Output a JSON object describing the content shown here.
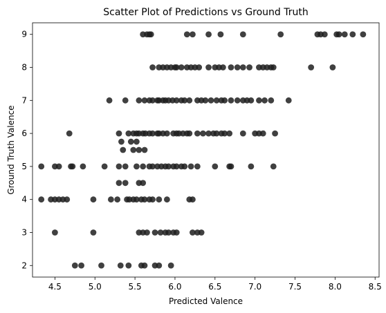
{
  "chart_data": {
    "type": "scatter",
    "title": "Scatter Plot of Predictions vs Ground Truth",
    "xlabel": "Predicted Valence",
    "ylabel": "Ground Truth Valence",
    "xlim": [
      4.22,
      8.55
    ],
    "ylim": [
      1.65,
      9.35
    ],
    "xticks": [
      4.5,
      5.0,
      5.5,
      6.0,
      6.5,
      7.0,
      7.5,
      8.0,
      8.5
    ],
    "xtick_labels": [
      "4.5",
      "5.0",
      "5.5",
      "6.0",
      "6.5",
      "7.0",
      "7.5",
      "8.0",
      "8.5"
    ],
    "yticks": [
      2,
      3,
      4,
      5,
      6,
      7,
      8,
      9
    ],
    "ytick_labels": [
      "2",
      "3",
      "4",
      "5",
      "6",
      "7",
      "8",
      "9"
    ],
    "grid": false,
    "marker_color": "#1f1f1f",
    "marker_alpha": 0.85,
    "series": [
      {
        "points": [
          [
            5.6,
            9
          ],
          [
            5.65,
            9
          ],
          [
            5.68,
            9
          ],
          [
            5.7,
            9
          ],
          [
            6.15,
            9
          ],
          [
            6.22,
            9
          ],
          [
            6.42,
            9
          ],
          [
            6.57,
            9
          ],
          [
            6.85,
            9
          ],
          [
            7.32,
            9
          ],
          [
            7.78,
            9
          ],
          [
            7.82,
            9
          ],
          [
            7.87,
            9
          ],
          [
            8.02,
            9
          ],
          [
            8.05,
            9
          ],
          [
            8.12,
            9
          ],
          [
            8.22,
            9
          ],
          [
            8.35,
            9
          ],
          [
            5.72,
            8
          ],
          [
            5.8,
            8
          ],
          [
            5.85,
            8
          ],
          [
            5.9,
            8
          ],
          [
            5.95,
            8
          ],
          [
            6.0,
            8
          ],
          [
            6.02,
            8
          ],
          [
            6.08,
            8
          ],
          [
            6.15,
            8
          ],
          [
            6.2,
            8
          ],
          [
            6.25,
            8
          ],
          [
            6.3,
            8
          ],
          [
            6.42,
            8
          ],
          [
            6.5,
            8
          ],
          [
            6.55,
            8
          ],
          [
            6.6,
            8
          ],
          [
            6.7,
            8
          ],
          [
            6.78,
            8
          ],
          [
            6.85,
            8
          ],
          [
            6.93,
            8
          ],
          [
            7.05,
            8
          ],
          [
            7.1,
            8
          ],
          [
            7.15,
            8
          ],
          [
            7.2,
            8
          ],
          [
            7.23,
            8
          ],
          [
            7.7,
            8
          ],
          [
            7.97,
            8
          ],
          [
            5.18,
            7
          ],
          [
            5.38,
            7
          ],
          [
            5.55,
            7
          ],
          [
            5.62,
            7
          ],
          [
            5.68,
            7
          ],
          [
            5.72,
            7
          ],
          [
            5.78,
            7
          ],
          [
            5.8,
            7
          ],
          [
            5.85,
            7
          ],
          [
            5.88,
            7
          ],
          [
            5.92,
            7
          ],
          [
            5.97,
            7
          ],
          [
            6.02,
            7
          ],
          [
            6.08,
            7
          ],
          [
            6.12,
            7
          ],
          [
            6.18,
            7
          ],
          [
            6.28,
            7
          ],
          [
            6.33,
            7
          ],
          [
            6.38,
            7
          ],
          [
            6.45,
            7
          ],
          [
            6.52,
            7
          ],
          [
            6.58,
            7
          ],
          [
            6.62,
            7
          ],
          [
            6.7,
            7
          ],
          [
            6.78,
            7
          ],
          [
            6.85,
            7
          ],
          [
            6.9,
            7
          ],
          [
            6.95,
            7
          ],
          [
            7.05,
            7
          ],
          [
            7.12,
            7
          ],
          [
            7.2,
            7
          ],
          [
            7.42,
            7
          ],
          [
            4.68,
            6
          ],
          [
            5.3,
            6
          ],
          [
            5.42,
            6
          ],
          [
            5.48,
            6
          ],
          [
            5.52,
            6
          ],
          [
            5.55,
            6
          ],
          [
            5.6,
            6
          ],
          [
            5.63,
            6
          ],
          [
            5.68,
            6
          ],
          [
            5.72,
            6
          ],
          [
            5.78,
            6
          ],
          [
            5.8,
            6
          ],
          [
            5.85,
            6
          ],
          [
            5.9,
            6
          ],
          [
            5.98,
            6
          ],
          [
            6.02,
            6
          ],
          [
            6.05,
            6
          ],
          [
            6.1,
            6
          ],
          [
            6.15,
            6
          ],
          [
            6.18,
            6
          ],
          [
            6.28,
            6
          ],
          [
            6.35,
            6
          ],
          [
            6.42,
            6
          ],
          [
            6.48,
            6
          ],
          [
            6.52,
            6
          ],
          [
            6.58,
            6
          ],
          [
            6.62,
            6
          ],
          [
            6.68,
            6
          ],
          [
            6.85,
            6
          ],
          [
            7.0,
            6
          ],
          [
            7.05,
            6
          ],
          [
            7.1,
            6
          ],
          [
            7.25,
            6
          ],
          [
            5.45,
            5.75
          ],
          [
            5.52,
            5.75
          ],
          [
            5.33,
            5.75
          ],
          [
            5.35,
            5.5
          ],
          [
            5.48,
            5.5
          ],
          [
            5.55,
            5.5
          ],
          [
            5.62,
            5.5
          ],
          [
            4.33,
            5
          ],
          [
            4.5,
            5
          ],
          [
            4.55,
            5
          ],
          [
            4.7,
            5
          ],
          [
            4.72,
            5
          ],
          [
            4.85,
            5
          ],
          [
            5.12,
            5
          ],
          [
            5.3,
            5
          ],
          [
            5.38,
            5
          ],
          [
            5.52,
            5
          ],
          [
            5.6,
            5
          ],
          [
            5.68,
            5
          ],
          [
            5.72,
            5
          ],
          [
            5.78,
            5
          ],
          [
            5.83,
            5
          ],
          [
            5.88,
            5
          ],
          [
            5.92,
            5
          ],
          [
            5.98,
            5
          ],
          [
            6.02,
            5
          ],
          [
            6.08,
            5
          ],
          [
            6.12,
            5
          ],
          [
            6.2,
            5
          ],
          [
            6.28,
            5
          ],
          [
            6.5,
            5
          ],
          [
            6.68,
            5
          ],
          [
            6.7,
            5
          ],
          [
            6.95,
            5
          ],
          [
            7.23,
            5
          ],
          [
            5.3,
            4.5
          ],
          [
            5.38,
            4.5
          ],
          [
            5.55,
            4.5
          ],
          [
            5.6,
            4.5
          ],
          [
            4.33,
            4
          ],
          [
            4.45,
            4
          ],
          [
            4.5,
            4
          ],
          [
            4.55,
            4
          ],
          [
            4.6,
            4
          ],
          [
            4.65,
            4
          ],
          [
            4.98,
            4
          ],
          [
            5.2,
            4
          ],
          [
            5.28,
            4
          ],
          [
            5.4,
            4
          ],
          [
            5.43,
            4
          ],
          [
            5.48,
            4
          ],
          [
            5.52,
            4
          ],
          [
            5.58,
            4
          ],
          [
            5.62,
            4
          ],
          [
            5.68,
            4
          ],
          [
            5.72,
            4
          ],
          [
            5.8,
            4
          ],
          [
            5.9,
            4
          ],
          [
            6.18,
            4
          ],
          [
            6.22,
            4
          ],
          [
            4.5,
            3
          ],
          [
            4.98,
            3
          ],
          [
            5.55,
            3
          ],
          [
            5.6,
            3
          ],
          [
            5.65,
            3
          ],
          [
            5.75,
            3
          ],
          [
            5.82,
            3
          ],
          [
            5.88,
            3
          ],
          [
            5.92,
            3
          ],
          [
            5.98,
            3
          ],
          [
            6.02,
            3
          ],
          [
            6.22,
            3
          ],
          [
            6.28,
            3
          ],
          [
            6.33,
            3
          ],
          [
            4.75,
            2
          ],
          [
            4.83,
            2
          ],
          [
            5.08,
            2
          ],
          [
            5.32,
            2
          ],
          [
            5.42,
            2
          ],
          [
            5.58,
            2
          ],
          [
            5.62,
            2
          ],
          [
            5.75,
            2
          ],
          [
            5.8,
            2
          ],
          [
            5.95,
            2
          ]
        ]
      }
    ]
  }
}
